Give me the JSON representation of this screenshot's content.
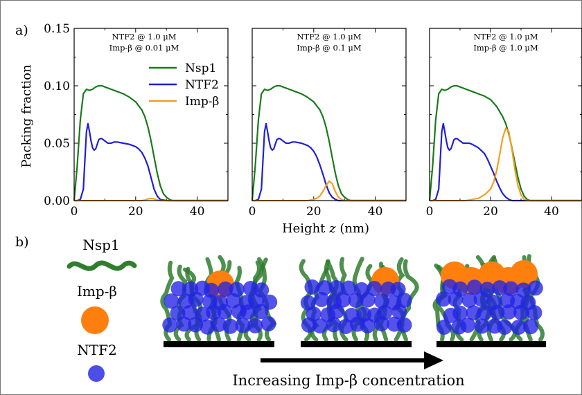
{
  "panel_labels": {
    "a": "a)",
    "b": "b)"
  },
  "colors": {
    "nsp1": "#1a7a1a",
    "ntf2": "#1f1fd6",
    "impb": "#f29e1e",
    "chain": "#2f7d2f",
    "impb_circle": "#ff7f0e",
    "ntf2_circle": "#2323e6"
  },
  "chart_data": [
    {
      "type": "line",
      "annotation": [
        "NTF2 @ 1.0 μM",
        "Imp-β @ 0.01 μM"
      ],
      "xlabel": "",
      "ylabel": "Packing fraction",
      "xlim": [
        0,
        50
      ],
      "ylim": [
        0,
        0.15
      ],
      "xticks": [
        "0",
        "20",
        "40"
      ],
      "yticks": [
        "0.00",
        "0.05",
        "0.10",
        "0.15"
      ],
      "legend": [
        "Nsp1",
        "NTF2",
        "Imp-β"
      ],
      "series": [
        {
          "name": "Nsp1",
          "x": [
            0,
            1,
            2,
            3,
            4,
            5,
            6,
            7,
            8,
            9,
            10,
            12,
            14,
            16,
            18,
            20,
            22,
            23,
            24,
            25,
            26,
            27,
            28,
            29,
            30,
            31,
            32,
            34,
            36,
            40,
            50
          ],
          "y": [
            0,
            0.03,
            0.07,
            0.093,
            0.097,
            0.096,
            0.097,
            0.099,
            0.1,
            0.1,
            0.099,
            0.097,
            0.095,
            0.093,
            0.09,
            0.086,
            0.079,
            0.073,
            0.064,
            0.052,
            0.038,
            0.024,
            0.013,
            0.006,
            0.003,
            0.001,
            0,
            0,
            0,
            0,
            0
          ]
        },
        {
          "name": "NTF2",
          "x": [
            0,
            1,
            2,
            3,
            3.5,
            4,
            4.5,
            5,
            5.5,
            6,
            6.5,
            7,
            7.5,
            8,
            8.5,
            9,
            10,
            11,
            12,
            13,
            14,
            16,
            18,
            20,
            21,
            22,
            23,
            24,
            25,
            26,
            27,
            28,
            30,
            40,
            50
          ],
          "y": [
            0,
            0,
            0.001,
            0.01,
            0.035,
            0.06,
            0.067,
            0.06,
            0.052,
            0.046,
            0.044,
            0.045,
            0.049,
            0.053,
            0.054,
            0.054,
            0.052,
            0.05,
            0.05,
            0.051,
            0.051,
            0.05,
            0.049,
            0.047,
            0.045,
            0.042,
            0.037,
            0.03,
            0.02,
            0.01,
            0.004,
            0.001,
            0,
            0,
            0
          ]
        },
        {
          "name": "Imp-β",
          "x": [
            0,
            20,
            22,
            23,
            24,
            25,
            26,
            27,
            28,
            30,
            50
          ],
          "y": [
            0,
            0,
            0,
            0.0005,
            0.0015,
            0.002,
            0.0015,
            0.0005,
            0,
            0,
            0
          ]
        }
      ]
    },
    {
      "type": "line",
      "annotation": [
        "NTF2 @ 1.0 μM",
        "Imp-β @ 0.1 μM"
      ],
      "xlabel": "Height z (nm)",
      "ylabel": "",
      "xlim": [
        0,
        50
      ],
      "ylim": [
        0,
        0.15
      ],
      "xticks": [
        "0",
        "20",
        "40"
      ],
      "yticks": [],
      "series": [
        {
          "name": "Nsp1",
          "x": [
            0,
            1,
            2,
            3,
            4,
            5,
            6,
            7,
            8,
            9,
            10,
            12,
            14,
            16,
            18,
            20,
            22,
            23,
            24,
            25,
            26,
            27,
            28,
            29,
            30,
            31,
            32,
            34,
            36,
            40,
            50
          ],
          "y": [
            0,
            0.03,
            0.07,
            0.093,
            0.097,
            0.096,
            0.097,
            0.099,
            0.1,
            0.1,
            0.099,
            0.097,
            0.095,
            0.093,
            0.09,
            0.086,
            0.079,
            0.073,
            0.064,
            0.052,
            0.038,
            0.024,
            0.013,
            0.006,
            0.003,
            0.001,
            0,
            0,
            0,
            0,
            0
          ]
        },
        {
          "name": "NTF2",
          "x": [
            0,
            1,
            2,
            3,
            3.5,
            4,
            4.5,
            5,
            5.5,
            6,
            6.5,
            7,
            7.5,
            8,
            8.5,
            9,
            10,
            11,
            12,
            13,
            14,
            16,
            18,
            19,
            20,
            21,
            22,
            23,
            24,
            25,
            26,
            27,
            28,
            30,
            40,
            50
          ],
          "y": [
            0,
            0,
            0.001,
            0.01,
            0.035,
            0.06,
            0.067,
            0.06,
            0.052,
            0.046,
            0.044,
            0.045,
            0.049,
            0.053,
            0.054,
            0.054,
            0.052,
            0.05,
            0.05,
            0.051,
            0.051,
            0.05,
            0.048,
            0.046,
            0.043,
            0.038,
            0.031,
            0.023,
            0.014,
            0.007,
            0.003,
            0.001,
            0,
            0,
            0,
            0
          ]
        },
        {
          "name": "Imp-β",
          "x": [
            0,
            18,
            20,
            21,
            22,
            23,
            24,
            25,
            26,
            27,
            28,
            29,
            30,
            32,
            50
          ],
          "y": [
            0,
            0,
            0.001,
            0.002,
            0.004,
            0.008,
            0.013,
            0.017,
            0.015,
            0.008,
            0.003,
            0.001,
            0,
            0,
            0
          ]
        }
      ]
    },
    {
      "type": "line",
      "annotation": [
        "NTF2 @ 1.0 μM",
        "Imp-β @ 1.0 μM"
      ],
      "xlabel": "",
      "ylabel": "",
      "xlim": [
        0,
        50
      ],
      "ylim": [
        0,
        0.15
      ],
      "xticks": [
        "0",
        "20",
        "40"
      ],
      "yticks": [],
      "series": [
        {
          "name": "Nsp1",
          "x": [
            0,
            1,
            2,
            3,
            4,
            5,
            6,
            7,
            8,
            9,
            10,
            12,
            14,
            16,
            18,
            20,
            22,
            24,
            25,
            26,
            27,
            28,
            29,
            30,
            31,
            32,
            33,
            34,
            36,
            40,
            50
          ],
          "y": [
            0,
            0.03,
            0.07,
            0.093,
            0.097,
            0.096,
            0.097,
            0.099,
            0.1,
            0.1,
            0.099,
            0.097,
            0.095,
            0.093,
            0.091,
            0.088,
            0.082,
            0.073,
            0.067,
            0.058,
            0.046,
            0.033,
            0.02,
            0.01,
            0.004,
            0.001,
            0,
            0,
            0,
            0,
            0
          ]
        },
        {
          "name": "NTF2",
          "x": [
            0,
            1,
            2,
            3,
            3.5,
            4,
            4.5,
            5,
            5.5,
            6,
            6.5,
            7,
            7.5,
            8,
            8.5,
            9,
            10,
            11,
            12,
            13,
            14,
            16,
            18,
            19,
            20,
            21,
            22,
            23,
            24,
            25,
            26,
            27,
            28,
            29,
            30,
            40,
            50
          ],
          "y": [
            0,
            0,
            0.001,
            0.01,
            0.035,
            0.06,
            0.067,
            0.06,
            0.052,
            0.046,
            0.044,
            0.045,
            0.049,
            0.053,
            0.054,
            0.054,
            0.052,
            0.05,
            0.05,
            0.05,
            0.049,
            0.046,
            0.041,
            0.036,
            0.03,
            0.024,
            0.017,
            0.011,
            0.006,
            0.003,
            0.001,
            0,
            0,
            0,
            0,
            0,
            0
          ]
        },
        {
          "name": "Imp-β",
          "x": [
            0,
            12,
            14,
            16,
            18,
            20,
            21,
            22,
            23,
            24,
            25,
            26,
            27,
            28,
            29,
            30,
            31,
            32,
            34,
            50
          ],
          "y": [
            0,
            0,
            0.001,
            0.002,
            0.005,
            0.01,
            0.016,
            0.026,
            0.04,
            0.055,
            0.063,
            0.06,
            0.045,
            0.027,
            0.013,
            0.005,
            0.001,
            0,
            0,
            0
          ]
        }
      ]
    }
  ],
  "schematic": {
    "legend_labels": {
      "nsp1": "Nsp1",
      "impb": "Imp-β",
      "ntf2": "NTF2"
    },
    "arrow_label": "Increasing Imp-β concentration",
    "impb_counts": [
      1,
      1,
      4
    ]
  }
}
